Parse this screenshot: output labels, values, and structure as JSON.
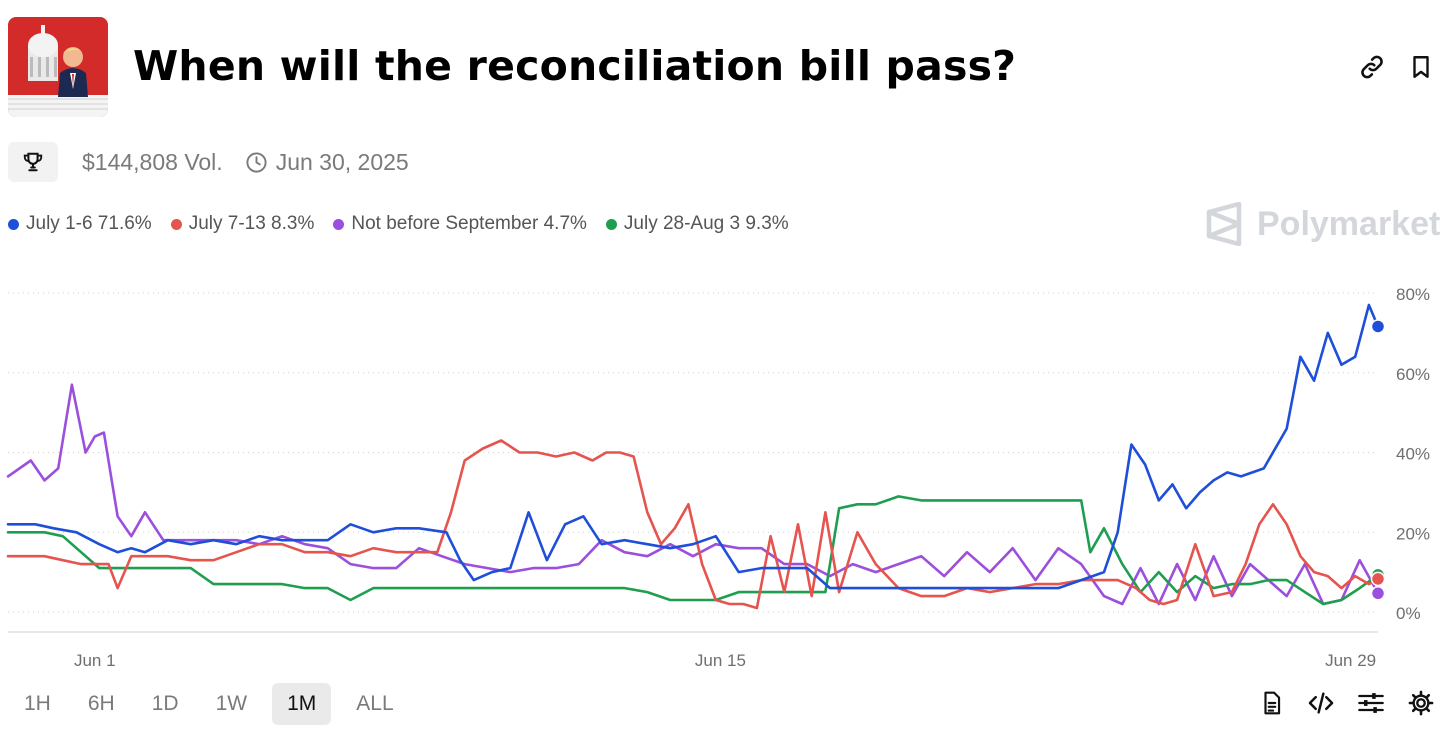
{
  "market": {
    "title": "When will the reconciliation bill pass?",
    "volume": "$144,808 Vol.",
    "end_date": "Jun 30, 2025"
  },
  "brand": {
    "name": "Polymarket"
  },
  "icons": {
    "link": "link-icon",
    "bookmark": "bookmark-icon",
    "trophy": "trophy-icon",
    "clock": "clock-icon",
    "doc": "document-icon",
    "embed": "code-icon",
    "filters": "sliders-icon",
    "settings": "gear-icon"
  },
  "legend": [
    {
      "label": "July 1-6 71.6%",
      "color": "#1f4fd8"
    },
    {
      "label": "July 7-13 8.3%",
      "color": "#e5544e"
    },
    {
      "label": "Not before September 4.7%",
      "color": "#9b4fdc"
    },
    {
      "label": "July 28-Aug 3 9.3%",
      "color": "#1f9e4f"
    }
  ],
  "ranges": [
    {
      "label": "1H",
      "active": false
    },
    {
      "label": "6H",
      "active": false
    },
    {
      "label": "1D",
      "active": false
    },
    {
      "label": "1W",
      "active": false
    },
    {
      "label": "1M",
      "active": true
    },
    {
      "label": "ALL",
      "active": false
    }
  ],
  "chart_data": {
    "type": "line",
    "title": "",
    "xlabel": "",
    "ylabel": "",
    "x_range": [
      0,
      30
    ],
    "ylim": [
      0,
      80
    ],
    "y_ticks": [
      0,
      20,
      40,
      60,
      80
    ],
    "y_tick_labels": [
      "0%",
      "20%",
      "40%",
      "60%",
      "80%"
    ],
    "x_ticks": [
      {
        "value": 1.9,
        "label": "Jun 1"
      },
      {
        "value": 15.6,
        "label": "Jun 15"
      },
      {
        "value": 29.4,
        "label": "Jun 29"
      }
    ],
    "grid": true,
    "series": [
      {
        "name": "July 1-6",
        "color": "#1f4fd8",
        "current": 71.6,
        "x": [
          0,
          0.6,
          1,
          1.5,
          2,
          2.4,
          2.7,
          3,
          3.5,
          4,
          4.5,
          5,
          5.5,
          6,
          6.5,
          7,
          7.5,
          8,
          8.5,
          9,
          9.6,
          9.9,
          10.2,
          10.6,
          11,
          11.4,
          11.8,
          12.2,
          12.6,
          13,
          13.5,
          14,
          14.5,
          15,
          15.5,
          16,
          16.5,
          17,
          17.5,
          18,
          18.5,
          19,
          19.5,
          20,
          20.5,
          21,
          21.5,
          22,
          22.5,
          23,
          23.5,
          24,
          24.3,
          24.6,
          24.9,
          25.2,
          25.5,
          25.8,
          26.1,
          26.4,
          26.7,
          27,
          27.5,
          28,
          28.3,
          28.6,
          28.9,
          29.2,
          29.5,
          29.8,
          30
        ],
        "values": [
          22,
          22,
          21,
          20,
          17,
          15,
          16,
          15,
          18,
          17,
          18,
          17,
          19,
          18,
          18,
          18,
          22,
          20,
          21,
          21,
          20,
          13,
          8,
          10,
          11,
          25,
          13,
          22,
          24,
          17,
          18,
          17,
          16,
          17,
          19,
          10,
          11,
          11,
          11,
          6,
          6,
          6,
          6,
          6,
          6,
          6,
          6,
          6,
          6,
          6,
          8,
          10,
          20,
          42,
          37,
          28,
          32,
          26,
          30,
          33,
          35,
          34,
          36,
          46,
          64,
          58,
          70,
          62,
          64,
          77,
          71.6
        ]
      },
      {
        "name": "July 7-13",
        "color": "#e5544e",
        "current": 8.3,
        "x": [
          0,
          0.8,
          1.2,
          1.6,
          2.2,
          2.4,
          2.7,
          3,
          3.5,
          4,
          4.5,
          5,
          5.5,
          6,
          6.5,
          7,
          7.5,
          8,
          8.5,
          9,
          9.4,
          9.7,
          10,
          10.4,
          10.8,
          11.2,
          11.6,
          12,
          12.4,
          12.8,
          13.1,
          13.4,
          13.7,
          14,
          14.3,
          14.6,
          14.9,
          15.2,
          15.5,
          15.8,
          16.1,
          16.4,
          16.7,
          17,
          17.3,
          17.6,
          17.9,
          18.2,
          18.6,
          19,
          19.5,
          20,
          20.5,
          21,
          21.5,
          22,
          22.5,
          23,
          23.5,
          24,
          24.3,
          24.7,
          25,
          25.3,
          25.6,
          26,
          26.4,
          26.8,
          27.1,
          27.4,
          27.7,
          28,
          28.3,
          28.6,
          28.9,
          29.2,
          29.5,
          29.8,
          30
        ],
        "values": [
          14,
          14,
          13,
          12,
          12,
          6,
          14,
          14,
          14,
          13,
          13,
          15,
          17,
          17,
          15,
          15,
          14,
          16,
          15,
          15,
          15,
          25,
          38,
          41,
          43,
          40,
          40,
          39,
          40,
          38,
          40,
          40,
          39,
          25,
          17,
          21,
          27,
          12,
          3,
          2,
          2,
          1,
          19,
          5,
          22,
          4,
          25,
          5,
          20,
          12,
          6,
          4,
          4,
          6,
          5,
          6,
          7,
          7,
          8,
          8,
          8,
          6,
          3,
          2,
          3,
          17,
          4,
          5,
          12,
          22,
          27,
          22,
          14,
          10,
          9,
          6,
          9,
          7,
          8.3
        ]
      },
      {
        "name": "Not before September",
        "color": "#9b4fdc",
        "current": 4.7,
        "x": [
          0,
          0.5,
          0.8,
          1.1,
          1.4,
          1.7,
          1.9,
          2.1,
          2.4,
          2.7,
          3,
          3.4,
          3.8,
          4.2,
          4.6,
          5,
          5.5,
          6,
          6.5,
          7,
          7.5,
          8,
          8.5,
          9,
          9.5,
          10,
          10.5,
          11,
          11.5,
          12,
          12.5,
          13,
          13.5,
          14,
          14.5,
          15,
          15.5,
          16,
          16.5,
          17,
          17.5,
          18,
          18.5,
          19,
          19.5,
          20,
          20.5,
          21,
          21.5,
          22,
          22.5,
          23,
          23.5,
          24,
          24.4,
          24.8,
          25.2,
          25.6,
          26,
          26.4,
          26.8,
          27.2,
          27.6,
          28,
          28.4,
          28.8,
          29.2,
          29.6,
          30
        ],
        "values": [
          34,
          38,
          33,
          36,
          57,
          40,
          44,
          45,
          24,
          19,
          25,
          18,
          18,
          18,
          18,
          18,
          17,
          19,
          17,
          16,
          12,
          11,
          11,
          16,
          14,
          12,
          11,
          10,
          11,
          11,
          12,
          18,
          15,
          14,
          17,
          14,
          17,
          16,
          16,
          12,
          12,
          9,
          12,
          10,
          12,
          14,
          9,
          15,
          10,
          16,
          8,
          16,
          12,
          4,
          2,
          11,
          2,
          12,
          3,
          14,
          4,
          12,
          8,
          4,
          12,
          2,
          3,
          13,
          4.7
        ]
      },
      {
        "name": "July 28-Aug 3",
        "color": "#1f9e4f",
        "current": 9.3,
        "x": [
          0,
          0.8,
          1.2,
          1.5,
          2,
          2.5,
          3,
          3.5,
          4,
          4.5,
          5,
          5.5,
          6,
          6.5,
          7,
          7.5,
          8,
          8.5,
          9,
          9.5,
          10,
          10.5,
          11,
          11.5,
          12,
          12.5,
          13,
          13.5,
          14,
          14.5,
          15,
          15.5,
          16,
          16.5,
          17,
          17.5,
          17.9,
          18.2,
          18.6,
          19,
          19.5,
          20,
          20.5,
          21,
          21.5,
          22,
          22.5,
          23,
          23.5,
          23.7,
          24,
          24.4,
          24.8,
          25.2,
          25.6,
          26,
          26.4,
          26.8,
          27.2,
          27.6,
          28,
          28.4,
          28.8,
          29.2,
          29.6,
          30
        ],
        "values": [
          20,
          20,
          19,
          16,
          11,
          11,
          11,
          11,
          11,
          7,
          7,
          7,
          7,
          6,
          6,
          3,
          6,
          6,
          6,
          6,
          6,
          6,
          6,
          6,
          6,
          6,
          6,
          6,
          5,
          3,
          3,
          3,
          5,
          5,
          5,
          5,
          5,
          26,
          27,
          27,
          29,
          28,
          28,
          28,
          28,
          28,
          28,
          28,
          28,
          15,
          21,
          12,
          5,
          10,
          5,
          9,
          6,
          7,
          7,
          8,
          8,
          5,
          2,
          3,
          6,
          9.3
        ]
      }
    ]
  }
}
